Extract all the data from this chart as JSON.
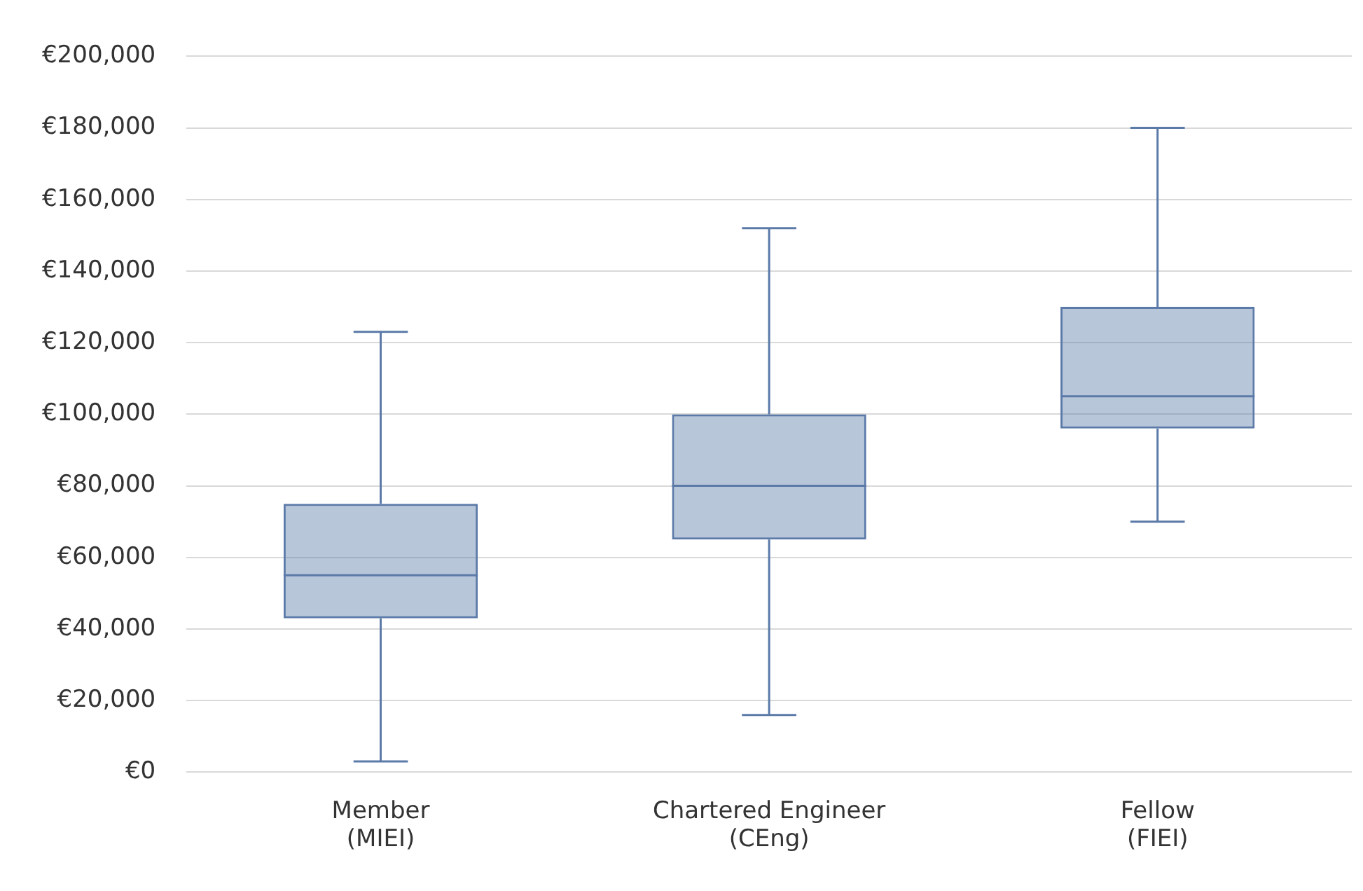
{
  "chart_data": {
    "type": "box",
    "categories": [
      "Member\n(MIEI)",
      "Chartered Engineer\n(CEng)",
      "Fellow\n(FIEI)"
    ],
    "color": "#5b7aa8",
    "boxes": [
      {
        "low": 3000,
        "q1": 43000,
        "median": 55000,
        "q3": 75000,
        "high": 123000
      },
      {
        "low": 16000,
        "q1": 65000,
        "median": 80000,
        "q3": 100000,
        "high": 152000
      },
      {
        "low": 70000,
        "q1": 96000,
        "median": 105000,
        "q3": 130000,
        "high": 180000
      }
    ],
    "ylim": [
      0,
      200000
    ],
    "yticks": [
      {
        "value": 0,
        "label": "€0"
      },
      {
        "value": 20000,
        "label": "€20,000"
      },
      {
        "value": 40000,
        "label": "€40,000"
      },
      {
        "value": 60000,
        "label": "€60,000"
      },
      {
        "value": 80000,
        "label": "€80,000"
      },
      {
        "value": 100000,
        "label": "€100,000"
      },
      {
        "value": 120000,
        "label": "€120,000"
      },
      {
        "value": 140000,
        "label": "€140,000"
      },
      {
        "value": 160000,
        "label": "€160,000"
      },
      {
        "value": 180000,
        "label": "€180,000"
      },
      {
        "value": 200000,
        "label": "€200,000"
      }
    ],
    "grid": "y",
    "legend": false
  }
}
